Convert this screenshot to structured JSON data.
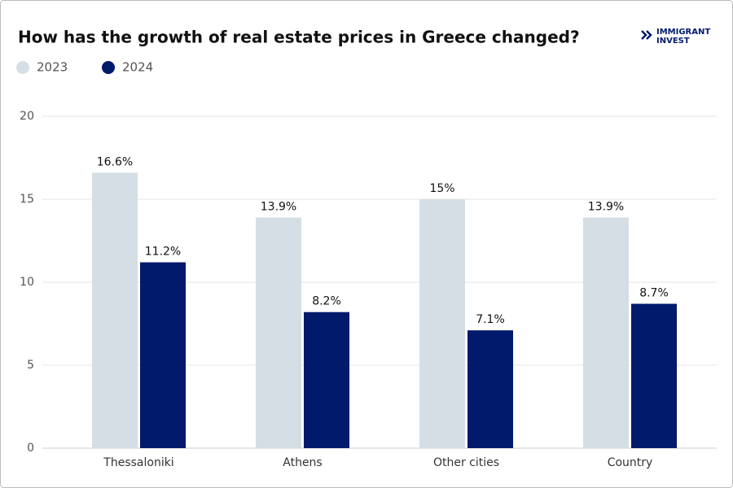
{
  "brand": {
    "lines": [
      "IMMIGRANT",
      "INVEST"
    ]
  },
  "chart_data": {
    "type": "bar",
    "title": "How has the growth of real estate prices in Greece changed?",
    "categories": [
      "Thessaloniki",
      "Athens",
      "Other cities",
      "Country"
    ],
    "series": [
      {
        "name": "2023",
        "color": "#d4dee4",
        "values": [
          16.6,
          13.9,
          15,
          13.9
        ],
        "value_labels": [
          "16.6%",
          "13.9%",
          "15%",
          "13.9%"
        ]
      },
      {
        "name": "2024",
        "color": "#021a6b",
        "values": [
          11.2,
          8.2,
          7.1,
          8.7
        ],
        "value_labels": [
          "11.2%",
          "8.2%",
          "7.1%",
          "8.7%"
        ]
      }
    ],
    "ylim": [
      0,
      20
    ],
    "yticks": [
      0,
      5,
      10,
      15,
      20
    ],
    "grid": true,
    "legend": "top-left"
  }
}
